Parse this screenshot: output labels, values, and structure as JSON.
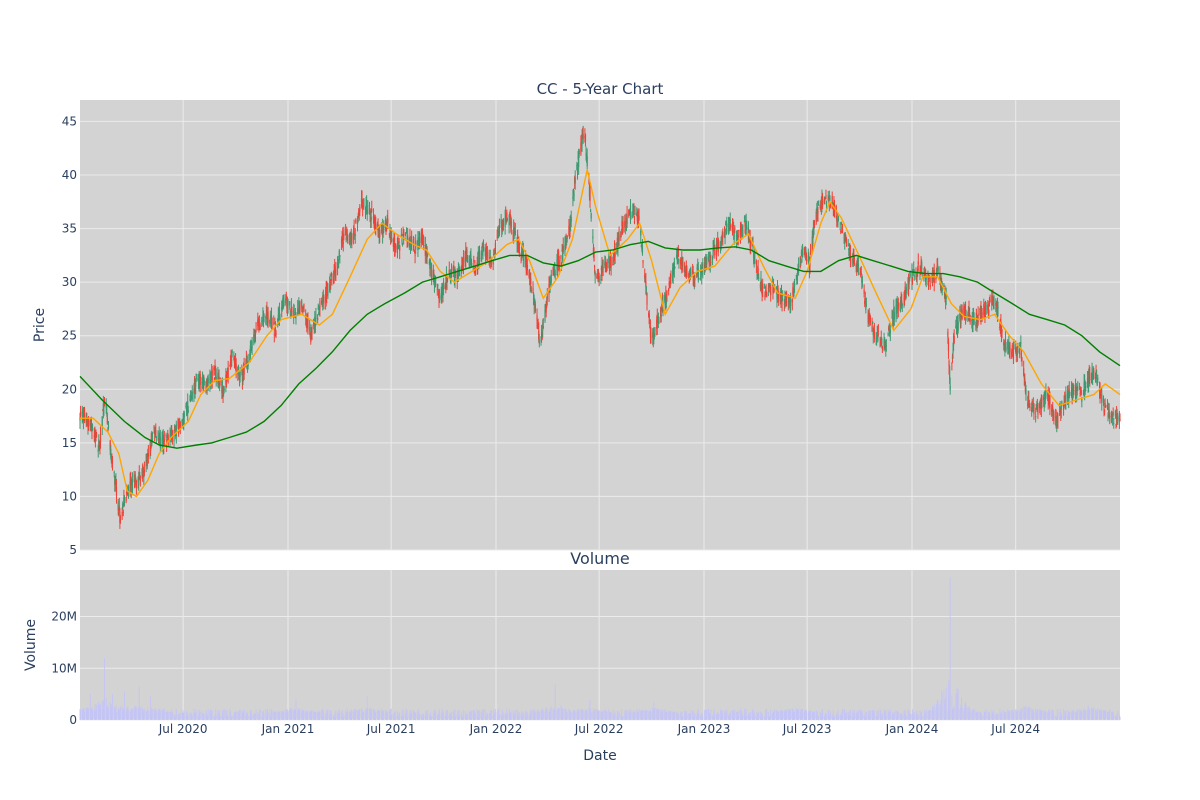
{
  "chart_data": {
    "type": "candlestick",
    "title": "CC - 5-Year Chart",
    "price_panel": {
      "ylabel": "Price",
      "ylim": [
        5,
        47
      ],
      "yticks": [
        5,
        10,
        15,
        20,
        25,
        30,
        35,
        40,
        45
      ],
      "up_color": "#3d9970",
      "down_color": "#ef4136",
      "ma_short_color": "#ffa500",
      "ma_long_color": "#008000",
      "price_path": [
        [
          "2020-01-02",
          17.5
        ],
        [
          "2020-01-20",
          17.0
        ],
        [
          "2020-02-05",
          14.5
        ],
        [
          "2020-02-15",
          19.5
        ],
        [
          "2020-02-25",
          14.0
        ],
        [
          "2020-03-05",
          11.0
        ],
        [
          "2020-03-12",
          8.0
        ],
        [
          "2020-03-25",
          10.5
        ],
        [
          "2020-04-10",
          11.5
        ],
        [
          "2020-04-25",
          12.5
        ],
        [
          "2020-05-10",
          16.0
        ],
        [
          "2020-05-25",
          15.0
        ],
        [
          "2020-06-10",
          15.5
        ],
        [
          "2020-06-25",
          16.5
        ],
        [
          "2020-07-10",
          18.5
        ],
        [
          "2020-07-25",
          21.0
        ],
        [
          "2020-08-10",
          20.5
        ],
        [
          "2020-08-25",
          21.5
        ],
        [
          "2020-09-10",
          20.0
        ],
        [
          "2020-09-25",
          23.0
        ],
        [
          "2020-10-10",
          21.0
        ],
        [
          "2020-10-25",
          23.0
        ],
        [
          "2020-11-10",
          26.0
        ],
        [
          "2020-11-25",
          27.0
        ],
        [
          "2020-12-10",
          25.5
        ],
        [
          "2020-12-25",
          28.5
        ],
        [
          "2021-01-10",
          27.0
        ],
        [
          "2021-01-25",
          28.0
        ],
        [
          "2021-02-10",
          25.0
        ],
        [
          "2021-02-25",
          27.5
        ],
        [
          "2021-03-10",
          29.0
        ],
        [
          "2021-03-25",
          31.0
        ],
        [
          "2021-04-10",
          34.5
        ],
        [
          "2021-04-25",
          34.0
        ],
        [
          "2021-05-10",
          37.5
        ],
        [
          "2021-05-25",
          36.5
        ],
        [
          "2021-06-10",
          34.5
        ],
        [
          "2021-06-25",
          35.5
        ],
        [
          "2021-07-10",
          33.0
        ],
        [
          "2021-07-25",
          34.5
        ],
        [
          "2021-08-10",
          33.0
        ],
        [
          "2021-08-25",
          34.0
        ],
        [
          "2021-09-10",
          31.0
        ],
        [
          "2021-09-25",
          28.5
        ],
        [
          "2021-10-10",
          31.0
        ],
        [
          "2021-10-25",
          30.5
        ],
        [
          "2021-11-10",
          32.5
        ],
        [
          "2021-11-25",
          31.5
        ],
        [
          "2021-12-10",
          33.0
        ],
        [
          "2021-12-25",
          31.5
        ],
        [
          "2022-01-10",
          35.5
        ],
        [
          "2022-01-25",
          36.0
        ],
        [
          "2022-02-10",
          33.5
        ],
        [
          "2022-02-25",
          31.5
        ],
        [
          "2022-03-10",
          28.0
        ],
        [
          "2022-03-20",
          24.0
        ],
        [
          "2022-03-28",
          27.0
        ],
        [
          "2022-04-10",
          31.0
        ],
        [
          "2022-04-25",
          32.0
        ],
        [
          "2022-05-10",
          35.0
        ],
        [
          "2022-05-20",
          39.5
        ],
        [
          "2022-05-28",
          42.0
        ],
        [
          "2022-06-05",
          44.5
        ],
        [
          "2022-06-15",
          38.0
        ],
        [
          "2022-06-25",
          30.0
        ],
        [
          "2022-07-10",
          31.5
        ],
        [
          "2022-07-25",
          32.0
        ],
        [
          "2022-08-10",
          35.0
        ],
        [
          "2022-08-25",
          36.5
        ],
        [
          "2022-09-10",
          35.5
        ],
        [
          "2022-09-20",
          30.0
        ],
        [
          "2022-10-01",
          24.5
        ],
        [
          "2022-10-15",
          27.0
        ],
        [
          "2022-10-30",
          29.0
        ],
        [
          "2022-11-15",
          32.5
        ],
        [
          "2022-11-30",
          31.0
        ],
        [
          "2022-12-15",
          30.5
        ],
        [
          "2023-01-01",
          31.5
        ],
        [
          "2023-01-15",
          32.5
        ],
        [
          "2023-02-01",
          34.0
        ],
        [
          "2023-02-15",
          35.5
        ],
        [
          "2023-03-01",
          34.0
        ],
        [
          "2023-03-15",
          35.5
        ],
        [
          "2023-04-01",
          32.0
        ],
        [
          "2023-04-15",
          29.0
        ],
        [
          "2023-05-01",
          29.5
        ],
        [
          "2023-05-15",
          28.5
        ],
        [
          "2023-05-30",
          28.0
        ],
        [
          "2023-06-10",
          29.5
        ],
        [
          "2023-06-25",
          33.5
        ],
        [
          "2023-07-05",
          31.5
        ],
        [
          "2023-07-15",
          36.0
        ],
        [
          "2023-07-30",
          38.0
        ],
        [
          "2023-08-15",
          37.5
        ],
        [
          "2023-08-30",
          35.0
        ],
        [
          "2023-09-15",
          32.5
        ],
        [
          "2023-09-30",
          31.5
        ],
        [
          "2023-10-15",
          27.0
        ],
        [
          "2023-10-30",
          25.0
        ],
        [
          "2023-11-15",
          24.0
        ],
        [
          "2023-11-30",
          27.0
        ],
        [
          "2023-12-15",
          28.5
        ],
        [
          "2024-01-01",
          30.5
        ],
        [
          "2024-01-15",
          31.5
        ],
        [
          "2024-02-01",
          30.0
        ],
        [
          "2024-02-15",
          31.0
        ],
        [
          "2024-03-01",
          28.5
        ],
        [
          "2024-03-08",
          20.5
        ],
        [
          "2024-03-15",
          25.0
        ],
        [
          "2024-04-01",
          27.5
        ],
        [
          "2024-04-20",
          26.5
        ],
        [
          "2024-05-10",
          27.5
        ],
        [
          "2024-05-25",
          28.5
        ],
        [
          "2024-06-10",
          24.5
        ],
        [
          "2024-06-25",
          23.5
        ],
        [
          "2024-07-10",
          24.0
        ],
        [
          "2024-07-20",
          19.0
        ],
        [
          "2024-08-05",
          18.0
        ],
        [
          "2024-08-25",
          19.5
        ],
        [
          "2024-09-10",
          17.0
        ],
        [
          "2024-09-25",
          19.0
        ],
        [
          "2024-10-10",
          20.0
        ],
        [
          "2024-10-25",
          19.5
        ],
        [
          "2024-11-10",
          21.5
        ],
        [
          "2024-11-20",
          21.0
        ],
        [
          "2024-12-05",
          18.0
        ],
        [
          "2024-12-31",
          17.0
        ]
      ],
      "ma_short": [
        [
          "2020-01-02",
          17.3
        ],
        [
          "2020-01-25",
          17.3
        ],
        [
          "2020-02-20",
          16.0
        ],
        [
          "2020-03-10",
          14.0
        ],
        [
          "2020-03-25",
          10.5
        ],
        [
          "2020-04-10",
          10.0
        ],
        [
          "2020-04-30",
          11.5
        ],
        [
          "2020-05-20",
          14.0
        ],
        [
          "2020-06-10",
          15.5
        ],
        [
          "2020-07-10",
          17.0
        ],
        [
          "2020-08-01",
          19.5
        ],
        [
          "2020-08-25",
          20.8
        ],
        [
          "2020-09-20",
          21.0
        ],
        [
          "2020-10-25",
          22.5
        ],
        [
          "2020-11-25",
          25.0
        ],
        [
          "2020-12-20",
          26.5
        ],
        [
          "2021-01-25",
          27.0
        ],
        [
          "2021-02-25",
          26.0
        ],
        [
          "2021-03-20",
          27.0
        ],
        [
          "2021-04-20",
          30.5
        ],
        [
          "2021-05-20",
          34.0
        ],
        [
          "2021-06-15",
          35.5
        ],
        [
          "2021-07-10",
          34.5
        ],
        [
          "2021-08-10",
          33.5
        ],
        [
          "2021-09-01",
          33.0
        ],
        [
          "2021-09-25",
          31.0
        ],
        [
          "2021-10-20",
          30.0
        ],
        [
          "2021-11-20",
          31.0
        ],
        [
          "2021-12-20",
          32.0
        ],
        [
          "2022-01-20",
          33.5
        ],
        [
          "2022-02-10",
          34.0
        ],
        [
          "2022-03-01",
          32.0
        ],
        [
          "2022-03-25",
          28.5
        ],
        [
          "2022-04-20",
          30.5
        ],
        [
          "2022-05-15",
          34.0
        ],
        [
          "2022-06-10",
          40.5
        ],
        [
          "2022-06-25",
          37.0
        ],
        [
          "2022-07-20",
          32.5
        ],
        [
          "2022-08-20",
          34.0
        ],
        [
          "2022-09-10",
          35.5
        ],
        [
          "2022-10-01",
          32.0
        ],
        [
          "2022-10-25",
          27.0
        ],
        [
          "2022-11-20",
          29.5
        ],
        [
          "2022-12-20",
          31.0
        ],
        [
          "2023-01-20",
          31.5
        ],
        [
          "2023-02-20",
          33.5
        ],
        [
          "2023-03-20",
          34.5
        ],
        [
          "2023-04-15",
          31.5
        ],
        [
          "2023-05-10",
          29.0
        ],
        [
          "2023-06-10",
          28.5
        ],
        [
          "2023-07-01",
          31.0
        ],
        [
          "2023-07-25",
          35.5
        ],
        [
          "2023-08-10",
          37.5
        ],
        [
          "2023-08-30",
          36.0
        ],
        [
          "2023-09-30",
          32.5
        ],
        [
          "2023-10-30",
          29.0
        ],
        [
          "2023-11-30",
          25.5
        ],
        [
          "2023-12-30",
          27.5
        ],
        [
          "2024-01-20",
          30.5
        ],
        [
          "2024-02-15",
          30.5
        ],
        [
          "2024-03-10",
          28.0
        ],
        [
          "2024-04-01",
          26.8
        ],
        [
          "2024-04-30",
          26.5
        ],
        [
          "2024-05-25",
          27.0
        ],
        [
          "2024-06-20",
          25.0
        ],
        [
          "2024-07-15",
          23.5
        ],
        [
          "2024-08-15",
          20.5
        ],
        [
          "2024-09-15",
          18.5
        ],
        [
          "2024-10-15",
          19.0
        ],
        [
          "2024-11-15",
          19.5
        ],
        [
          "2024-12-05",
          20.5
        ],
        [
          "2024-12-31",
          19.5
        ]
      ],
      "ma_long": [
        [
          "2020-01-02",
          21.2
        ],
        [
          "2020-02-10",
          19.0
        ],
        [
          "2020-03-20",
          17.0
        ],
        [
          "2020-04-25",
          15.5
        ],
        [
          "2020-05-20",
          14.8
        ],
        [
          "2020-06-20",
          14.5
        ],
        [
          "2020-07-25",
          14.8
        ],
        [
          "2020-08-20",
          15.0
        ],
        [
          "2020-09-20",
          15.5
        ],
        [
          "2020-10-20",
          16.0
        ],
        [
          "2020-11-20",
          17.0
        ],
        [
          "2020-12-20",
          18.5
        ],
        [
          "2021-01-20",
          20.5
        ],
        [
          "2021-02-20",
          22.0
        ],
        [
          "2021-03-20",
          23.5
        ],
        [
          "2021-04-20",
          25.5
        ],
        [
          "2021-05-20",
          27.0
        ],
        [
          "2021-06-20",
          28.0
        ],
        [
          "2021-07-25",
          29.0
        ],
        [
          "2021-08-25",
          30.0
        ],
        [
          "2021-09-25",
          30.5
        ],
        [
          "2021-10-25",
          31.0
        ],
        [
          "2021-11-25",
          31.5
        ],
        [
          "2021-12-25",
          32.0
        ],
        [
          "2022-01-25",
          32.5
        ],
        [
          "2022-02-25",
          32.5
        ],
        [
          "2022-03-25",
          31.8
        ],
        [
          "2022-04-25",
          31.5
        ],
        [
          "2022-05-25",
          32.0
        ],
        [
          "2022-06-25",
          32.8
        ],
        [
          "2022-07-25",
          33.0
        ],
        [
          "2022-08-25",
          33.5
        ],
        [
          "2022-09-25",
          33.8
        ],
        [
          "2022-10-25",
          33.2
        ],
        [
          "2022-11-25",
          33.0
        ],
        [
          "2022-12-25",
          33.0
        ],
        [
          "2023-01-25",
          33.2
        ],
        [
          "2023-02-25",
          33.3
        ],
        [
          "2023-03-25",
          33.0
        ],
        [
          "2023-04-25",
          32.0
        ],
        [
          "2023-05-25",
          31.5
        ],
        [
          "2023-06-25",
          31.0
        ],
        [
          "2023-07-25",
          31.0
        ],
        [
          "2023-08-25",
          32.0
        ],
        [
          "2023-09-25",
          32.5
        ],
        [
          "2023-10-25",
          32.0
        ],
        [
          "2023-11-25",
          31.5
        ],
        [
          "2023-12-25",
          31.0
        ],
        [
          "2024-01-25",
          30.8
        ],
        [
          "2024-02-25",
          30.8
        ],
        [
          "2024-03-25",
          30.5
        ],
        [
          "2024-04-25",
          30.0
        ],
        [
          "2024-05-25",
          29.0
        ],
        [
          "2024-06-25",
          28.0
        ],
        [
          "2024-07-25",
          27.0
        ],
        [
          "2024-08-25",
          26.5
        ],
        [
          "2024-09-25",
          26.0
        ],
        [
          "2024-10-25",
          25.0
        ],
        [
          "2024-11-25",
          23.5
        ],
        [
          "2024-12-31",
          22.2
        ]
      ]
    },
    "volume_panel": {
      "subtitle": "Volume",
      "ylabel": "Volume",
      "ylim": [
        0,
        29000000
      ],
      "yticks": [
        0,
        10000000,
        20000000
      ],
      "ytick_labels": [
        "0",
        "10M",
        "20M"
      ],
      "bar_color": "#c5c5f5",
      "spikes": [
        [
          "2020-02-14",
          12000000
        ],
        [
          "2020-01-20",
          5000000
        ],
        [
          "2020-02-28",
          5000000
        ],
        [
          "2020-03-20",
          5500000
        ],
        [
          "2020-04-15",
          6500000
        ],
        [
          "2020-05-05",
          4500000
        ],
        [
          "2021-01-15",
          4000000
        ],
        [
          "2021-05-20",
          4500000
        ],
        [
          "2022-04-15",
          7000000
        ],
        [
          "2022-06-15",
          4000000
        ],
        [
          "2022-10-05",
          3500000
        ],
        [
          "2023-06-10",
          4000000
        ],
        [
          "2024-03-08",
          27500000
        ],
        [
          "2024-03-22",
          6000000
        ],
        [
          "2024-07-20",
          5000000
        ],
        [
          "2024-11-10",
          5500000
        ]
      ]
    },
    "x_axis": {
      "xlabel": "Date",
      "range": [
        "2020-01-02",
        "2024-12-31"
      ],
      "ticks": [
        "2020-07-01",
        "2021-01-01",
        "2021-07-01",
        "2022-01-01",
        "2022-07-01",
        "2023-01-01",
        "2023-07-01",
        "2024-01-01",
        "2024-07-01"
      ],
      "tick_labels": [
        "Jul 2020",
        "Jan 2021",
        "Jul 2021",
        "Jan 2022",
        "Jul 2022",
        "Jan 2023",
        "Jul 2023",
        "Jan 2024",
        "Jul 2024"
      ]
    }
  }
}
